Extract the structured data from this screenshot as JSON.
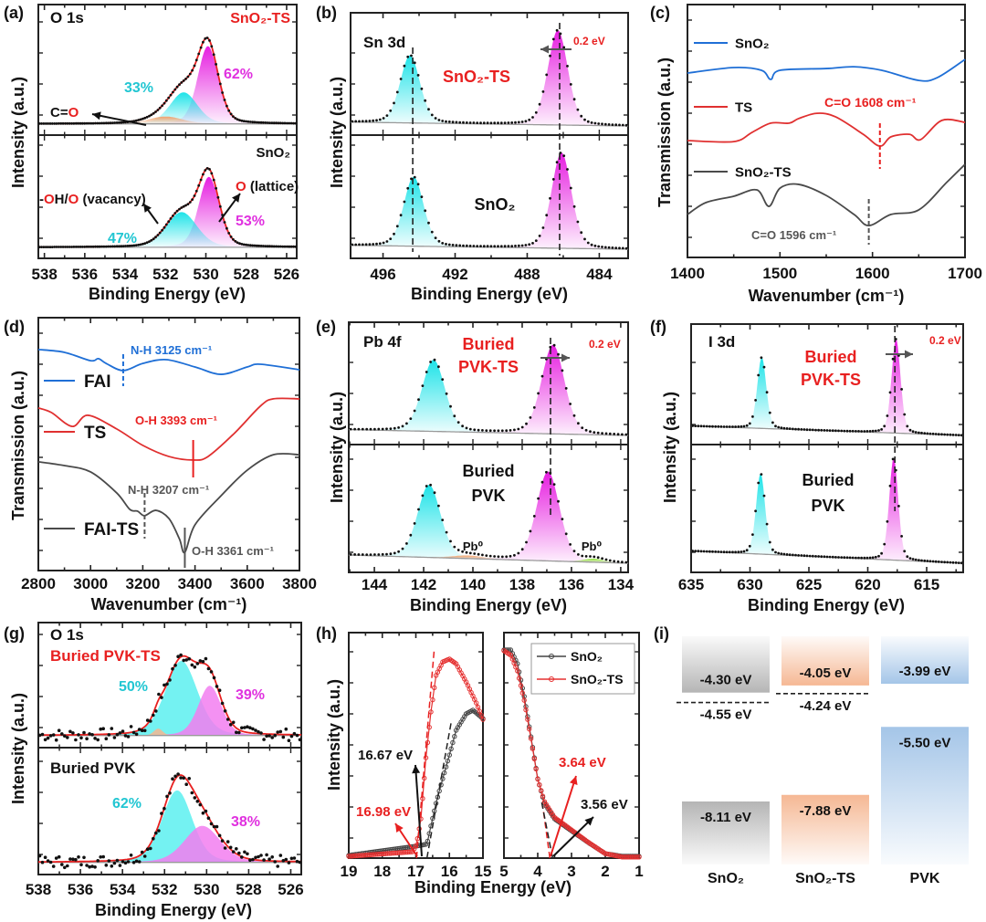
{
  "chart_data": [
    {
      "panel": "(a)",
      "type": "line",
      "title": "O 1s",
      "xlabel": "Binding Energy (eV)",
      "ylabel": "Intensity (a.u.)",
      "xlim": [
        538.3,
        525.5
      ],
      "xticks": [
        538,
        536,
        534,
        532,
        530,
        528,
        526
      ],
      "subplots": [
        {
          "sample": "SnO₂-TS",
          "background": [
            0.02,
            0.02
          ],
          "components": [
            {
              "center": 529.9,
              "fwhm": 1.2,
              "amplitude": 0.74,
              "percent": "62%",
              "color": "#e61ee0"
            },
            {
              "center": 531.1,
              "fwhm": 1.6,
              "amplitude": 0.3,
              "percent": "33%",
              "color": "#1ee3e8"
            },
            {
              "center": 532.0,
              "fwhm": 2.0,
              "amplitude": 0.07,
              "color": "#f2a06a"
            }
          ]
        },
        {
          "sample": "SnO₂",
          "background": [
            0.02,
            0.02
          ],
          "components": [
            {
              "center": 529.85,
              "fwhm": 1.2,
              "amplitude": 0.72,
              "percent": "53%",
              "color": "#e61ee0"
            },
            {
              "center": 531.2,
              "fwhm": 1.8,
              "amplitude": 0.36,
              "percent": "47%",
              "color": "#1ee3e8"
            }
          ]
        }
      ],
      "annotations": {
        "co": [
          {
            "t": "C=",
            "c": "#111111"
          },
          {
            "t": "O",
            "c": "#e82020"
          }
        ],
        "vacancy": [
          {
            "t": "-",
            "c": "#111111"
          },
          {
            "t": "O",
            "c": "#e82020"
          },
          {
            "t": "H/",
            "c": "#111111"
          },
          {
            "t": "O",
            "c": "#e82020"
          },
          {
            "t": " (vacancy)",
            "c": "#111111"
          }
        ],
        "lattice": [
          {
            "t": "O",
            "c": "#e82020"
          },
          {
            "t": " (lattice)",
            "c": "#111111"
          }
        ]
      }
    },
    {
      "panel": "(b)",
      "type": "line",
      "title": "Sn 3d",
      "xlabel": "Binding Energy (eV)",
      "ylabel": "Intensity (a.u.)",
      "xlim": [
        497.8,
        482.4
      ],
      "xticks": [
        496,
        492,
        488,
        484
      ],
      "subplots": [
        {
          "sample": "SnO₂-TS",
          "background": [
            0.04,
            0.0
          ],
          "components": [
            {
              "center": 494.5,
              "fwhm": 1.3,
              "amplitude": 0.7,
              "color": "#1ee3e8"
            },
            {
              "center": 486.3,
              "fwhm": 1.3,
              "amplitude": 0.98,
              "color": "#e61ee0"
            }
          ]
        },
        {
          "sample": "SnO₂",
          "background": [
            0.04,
            0.0
          ],
          "components": [
            {
              "center": 494.3,
              "fwhm": 1.3,
              "amplitude": 0.71,
              "color": "#1ee3e8"
            },
            {
              "center": 486.1,
              "fwhm": 1.3,
              "amplitude": 0.98,
              "color": "#e61ee0"
            }
          ]
        }
      ],
      "annotations": {
        "shift": "0.2 eV"
      }
    },
    {
      "panel": "(c)",
      "type": "line",
      "xlabel": "Wavenumber (cm⁻¹)",
      "ylabel": "Transmission (a.u.)",
      "xlim": [
        1400,
        1700
      ],
      "xticks": [
        1400,
        1500,
        1600,
        1700
      ],
      "series": [
        {
          "name": "SnO₂",
          "color": "#1f6fd6",
          "x": [
            1400,
            1450,
            1480,
            1490,
            1500,
            1550,
            1580,
            1610,
            1650,
            1670,
            1700
          ],
          "y": [
            7.29,
            7.51,
            7.4,
            7.04,
            7.4,
            7.47,
            7.54,
            7.4,
            7.0,
            7.11,
            7.83
          ]
        },
        {
          "name": "TS",
          "color": "#e03030",
          "x": [
            1400,
            1450,
            1470,
            1490,
            1510,
            1520,
            1540,
            1560,
            1590,
            1608,
            1620,
            1640,
            1652,
            1675,
            1700
          ],
          "y": [
            4.62,
            4.58,
            4.95,
            5.31,
            5.31,
            5.49,
            5.7,
            5.56,
            4.87,
            4.4,
            4.77,
            4.87,
            4.66,
            5.42,
            5.34
          ]
        },
        {
          "name": "SnO₂-TS",
          "color": "#4a4a4a",
          "x": [
            1400,
            1420,
            1450,
            1475,
            1488,
            1500,
            1520,
            1550,
            1580,
            1596,
            1620,
            1650,
            1680,
            1700
          ],
          "y": [
            1.7,
            2.17,
            2.42,
            2.67,
            2.02,
            2.74,
            2.89,
            2.45,
            1.7,
            1.26,
            1.7,
            1.88,
            2.96,
            3.68
          ]
        }
      ],
      "annotations": {
        "ts_peak": "C=O  1608 cm⁻¹",
        "snts_peak": "C=O  1596 cm⁻¹"
      }
    },
    {
      "panel": "(d)",
      "type": "line",
      "xlabel": "Wavenumber (cm⁻¹)",
      "ylabel": "Transmission (a.u.)",
      "xlim": [
        2800,
        3800
      ],
      "xticks": [
        2800,
        3000,
        3200,
        3400,
        3600,
        3800
      ],
      "series": [
        {
          "name": "FAI",
          "color": "#1f6fd6",
          "x": [
            2800,
            2900,
            3000,
            3030,
            3060,
            3125,
            3200,
            3290,
            3400,
            3500,
            3600,
            3650,
            3800
          ],
          "y": [
            8.74,
            8.63,
            8.3,
            8.38,
            8.19,
            7.91,
            8.19,
            8.34,
            8.05,
            7.76,
            8.05,
            8.16,
            7.94
          ]
        },
        {
          "name": "TS",
          "color": "#e03030",
          "x": [
            2800,
            2850,
            2930,
            2990,
            3100,
            3200,
            3300,
            3393,
            3450,
            3550,
            3650,
            3700,
            3800
          ],
          "y": [
            6.43,
            6.25,
            5.7,
            6.14,
            5.6,
            4.95,
            4.51,
            4.37,
            4.51,
            5.42,
            6.5,
            6.79,
            6.79
          ]
        },
        {
          "name": "FAI-TS",
          "color": "#4a4a4a",
          "x": [
            2800,
            2900,
            3000,
            3100,
            3150,
            3180,
            3207,
            3250,
            3300,
            3340,
            3361,
            3400,
            3500,
            3600,
            3700,
            3800
          ],
          "y": [
            4.3,
            4.15,
            3.9,
            3.07,
            2.42,
            2.35,
            2.17,
            2.38,
            2.06,
            1.26,
            0.72,
            1.81,
            2.96,
            3.97,
            4.58,
            4.58
          ]
        }
      ],
      "annotations": {
        "fai_nh": "N-H  3125 cm⁻¹",
        "ts_oh": "O-H  3393 cm⁻¹",
        "faits_nh": "N-H  3207 cm⁻¹",
        "faits_oh": "O-H  3361 cm⁻¹"
      }
    },
    {
      "panel": "(e)",
      "type": "line",
      "title": "Pb 4f",
      "xlabel": "Binding Energy (eV)",
      "ylabel": "Intensity (a.u.)",
      "xlim": [
        145.04,
        133.7
      ],
      "xticks": [
        144,
        142,
        140,
        138,
        136,
        134
      ],
      "subplots": [
        {
          "sample_lines": [
            "Buried",
            "PVK-TS"
          ],
          "background": [
            0.06,
            0.0
          ],
          "components": [
            {
              "center": 141.6,
              "fwhm": 1.1,
              "amplitude": 0.74,
              "color": "#1ee3e8"
            },
            {
              "center": 136.75,
              "fwhm": 1.1,
              "amplitude": 0.92,
              "color": "#e61ee0"
            }
          ]
        },
        {
          "sample_lines": [
            "Buried",
            "PVK"
          ],
          "background": [
            0.08,
            0.0
          ],
          "components": [
            {
              "center": 141.78,
              "fwhm": 1.1,
              "amplitude": 0.71,
              "color": "#1ee3e8"
            },
            {
              "center": 136.95,
              "fwhm": 1.1,
              "amplitude": 0.875,
              "color": "#e61ee0"
            },
            {
              "center": 140.2,
              "fwhm": 1.5,
              "amplitude": 0.03,
              "color": "#f2a06a"
            },
            {
              "center": 135.1,
              "fwhm": 1.0,
              "amplitude": 0.035,
              "color": "#8fe03a"
            }
          ]
        }
      ],
      "annotations": {
        "shift": "0.2 eV",
        "pb0_left": "Pb⁰",
        "pb0_right": "Pb⁰"
      }
    },
    {
      "panel": "(f)",
      "type": "line",
      "title": "I 3d",
      "xlabel": "Binding Energy (eV)",
      "ylabel": "Intensity (a.u.)",
      "xlim": [
        635,
        611.9
      ],
      "xticks": [
        635,
        630,
        625,
        620,
        615
      ],
      "subplots": [
        {
          "sample_lines": [
            "Buried",
            "PVK-TS"
          ],
          "background": [
            0.1,
            0.0
          ],
          "components": [
            {
              "center": 629.0,
              "fwhm": 0.9,
              "amplitude": 0.75,
              "color": "#1ee3e8"
            },
            {
              "center": 617.6,
              "fwhm": 0.9,
              "amplitude": 0.99,
              "color": "#e61ee0"
            }
          ]
        },
        {
          "sample_lines": [
            "Buried",
            "PVK"
          ],
          "background": [
            0.12,
            0.0
          ],
          "components": [
            {
              "center": 629.1,
              "fwhm": 0.9,
              "amplitude": 0.79,
              "color": "#1ee3e8"
            },
            {
              "center": 617.8,
              "fwhm": 0.9,
              "amplitude": 1.0,
              "color": "#e61ee0"
            }
          ]
        }
      ],
      "annotations": {
        "shift": "0.2 eV"
      }
    },
    {
      "panel": "(g)",
      "type": "line",
      "title": "O 1s",
      "xlabel": "Binding Energy (eV)",
      "ylabel": "Intensity (a.u.)",
      "xlim": [
        538,
        525.5
      ],
      "xticks": [
        538,
        536,
        534,
        532,
        530,
        528,
        526
      ],
      "subplots": [
        {
          "sample": "Buried PVK-TS",
          "background": [
            0.03,
            0.03
          ],
          "components": [
            {
              "center": 531.2,
              "fwhm": 1.8,
              "amplitude": 0.75,
              "percent": "50%",
              "color": "#5cf0f0"
            },
            {
              "center": 529.85,
              "fwhm": 1.3,
              "amplitude": 0.5,
              "percent": "39%",
              "color": "#f27ef0"
            },
            {
              "center": 532.3,
              "fwhm": 0.5,
              "amplitude": 0.07,
              "color": "#f5b690"
            }
          ]
        },
        {
          "sample": "Buried PVK",
          "background": [
            0.03,
            0.03
          ],
          "components": [
            {
              "center": 531.4,
              "fwhm": 1.7,
              "amplitude": 0.71,
              "percent": "62%",
              "color": "#5cf0f0"
            },
            {
              "center": 530.2,
              "fwhm": 2.0,
              "amplitude": 0.36,
              "percent": "38%",
              "color": "#f27ef0"
            }
          ]
        }
      ]
    },
    {
      "panel": "(h)",
      "type": "line",
      "xlabel": "Binding Energy (eV)",
      "ylabel": "Intensity (a.u.)",
      "xlim_left": [
        19,
        15
      ],
      "xticks_left": [
        19,
        18,
        17,
        16,
        15
      ],
      "xlim_right": [
        5,
        1
      ],
      "xticks_right": [
        5,
        4,
        3,
        2,
        1
      ],
      "series": [
        {
          "name": "SnO₂",
          "color": "#444444",
          "cutoff": {
            "x": [
              19,
              17,
              16.67,
              16.4,
              16.2,
              16.0,
              15.8,
              15.5,
              15.3,
              15.0
            ],
            "y": [
              0.12,
              0.53,
              0.62,
              2.43,
              3.52,
              4.57,
              5.67,
              6.4,
              6.56,
              6.19
            ]
          },
          "valence": {
            "x": [
              5,
              4.8,
              4.6,
              4.4,
              4.2,
              4.0,
              3.8,
              3.5,
              3.0,
              2.5,
              2.0,
              1.5,
              1.0
            ],
            "y": [
              9.23,
              9.23,
              8.62,
              7.17,
              5.38,
              3.52,
              2.43,
              1.74,
              1.21,
              0.69,
              0.2,
              0.08,
              0.08
            ]
          }
        },
        {
          "name": "SnO₂-TS",
          "color": "#e53030",
          "cutoff": {
            "x": [
              19,
              17.1,
              16.98,
              16.85,
              16.7,
              16.55,
              16.4,
              16.2,
              16.0,
              15.8,
              15.5,
              15.2,
              15.0
            ],
            "y": [
              0.08,
              0.28,
              0.6,
              1.74,
              4.45,
              6.48,
              8.1,
              8.7,
              8.83,
              8.62,
              7.81,
              6.88,
              6.15
            ]
          },
          "valence": {
            "x": [
              5,
              4.8,
              4.6,
              4.4,
              4.2,
              4.0,
              3.8,
              3.5,
              3.0,
              2.5,
              2.0,
              1.5,
              1.0
            ],
            "y": [
              9.2,
              9.0,
              8.3,
              7.0,
              5.3,
              3.5,
              2.5,
              1.8,
              1.25,
              0.7,
              0.2,
              0.05,
              0.05
            ]
          }
        }
      ],
      "annotations": {
        "snO2_cutoff": "16.67 eV",
        "ts_cutoff": "16.98 eV",
        "ts_vbm": "3.64 eV",
        "snO2_vbm": "3.56 eV"
      }
    },
    {
      "panel": "(i)",
      "type": "energy-level",
      "materials": [
        {
          "name": "SnO₂",
          "cbm": -4.3,
          "cbm_label": "-4.30 eV",
          "fermi": -4.55,
          "fermi_label": "-4.55 eV",
          "vbm": -8.11,
          "vbm_label": "-8.11 eV",
          "color": "#9c9c9c"
        },
        {
          "name": "SnO₂-TS",
          "cbm": -4.05,
          "cbm_label": "-4.05 eV",
          "fermi": -4.24,
          "fermi_label": "-4.24 eV",
          "vbm": -7.88,
          "vbm_label": "-7.88 eV",
          "color": "#f2a070"
        },
        {
          "name": "PVK",
          "cbm": -3.99,
          "cbm_label": "-3.99 eV",
          "vbm": -5.5,
          "vbm_label": "-5.50 eV",
          "color": "#86b2e0"
        }
      ]
    }
  ]
}
